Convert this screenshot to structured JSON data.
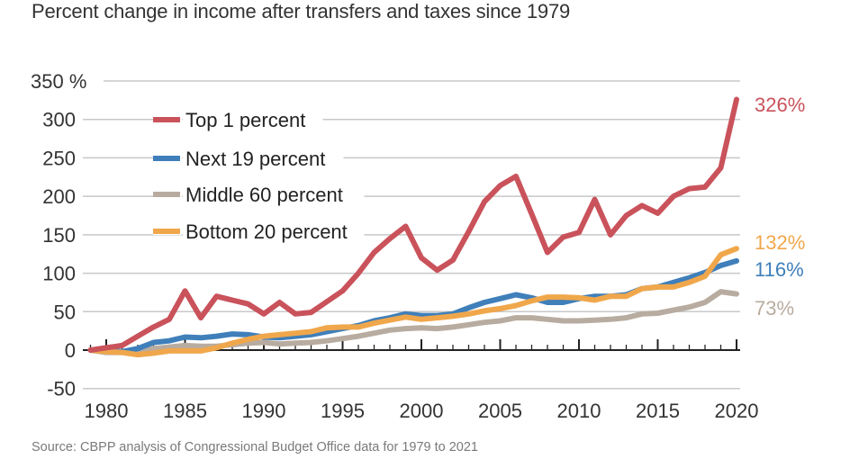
{
  "title": "Percent change in income after transfers and taxes since 1979",
  "source": "Source: CBPP analysis of Congressional Budget Office data for 1979 to 2021",
  "chart_data": {
    "type": "line",
    "title": "Percent change in income after transfers and taxes since 1979",
    "xlabel": "",
    "ylabel": "",
    "x": [
      1979,
      1980,
      1981,
      1982,
      1983,
      1984,
      1985,
      1986,
      1987,
      1988,
      1989,
      1990,
      1991,
      1992,
      1993,
      1994,
      1995,
      1996,
      1997,
      1998,
      1999,
      2000,
      2001,
      2002,
      2003,
      2004,
      2005,
      2006,
      2007,
      2008,
      2009,
      2010,
      2011,
      2012,
      2013,
      2014,
      2015,
      2016,
      2017,
      2018,
      2019,
      2020
    ],
    "xlim": [
      1978,
      2021
    ],
    "ylim": [
      -50,
      350
    ],
    "y_ticks": [
      -50,
      0,
      50,
      100,
      150,
      200,
      250,
      300,
      350
    ],
    "y_tick_labels": [
      "-50",
      "0",
      "50",
      "100",
      "150",
      "200",
      "250",
      "300",
      "350 %"
    ],
    "x_ticks": [
      1980,
      1985,
      1990,
      1995,
      2000,
      2005,
      2010,
      2015,
      2020
    ],
    "x_tick_labels": [
      "1980",
      "1985",
      "1990",
      "1995",
      "2000",
      "2005",
      "2010",
      "2015",
      "2020"
    ],
    "grid": true,
    "legend_position": "top-left",
    "series": [
      {
        "name": "Top 1 percent",
        "color": "#c9525b",
        "end_label": "326%",
        "values": [
          0,
          3,
          6,
          18,
          30,
          40,
          77,
          42,
          70,
          65,
          60,
          47,
          62,
          47,
          49,
          63,
          77,
          100,
          127,
          145,
          161,
          120,
          104,
          117,
          154,
          193,
          214,
          226,
          177,
          127,
          147,
          153,
          196,
          150,
          175,
          188,
          178,
          200,
          210,
          212,
          237,
          326
        ]
      },
      {
        "name": "Next 19 percent",
        "color": "#3f7fba",
        "end_label": "116%",
        "values": [
          0,
          -1,
          -2,
          2,
          10,
          12,
          17,
          16,
          18,
          21,
          20,
          17,
          16,
          18,
          20,
          24,
          28,
          32,
          38,
          42,
          47,
          45,
          45,
          47,
          55,
          62,
          67,
          72,
          68,
          62,
          62,
          67,
          70,
          70,
          72,
          80,
          82,
          88,
          94,
          101,
          110,
          116
        ]
      },
      {
        "name": "Middle 60 percent",
        "color": "#b8aca0",
        "end_label": "73%",
        "values": [
          0,
          -3,
          -3,
          -2,
          2,
          4,
          6,
          5,
          5,
          7,
          9,
          10,
          8,
          9,
          10,
          12,
          15,
          18,
          22,
          26,
          28,
          29,
          28,
          30,
          33,
          36,
          38,
          42,
          42,
          40,
          38,
          38,
          39,
          40,
          42,
          47,
          48,
          52,
          56,
          62,
          76,
          73
        ]
      },
      {
        "name": "Bottom 20 percent",
        "color": "#f0a74b",
        "end_label": "132%",
        "values": [
          0,
          -2,
          -3,
          -6,
          -4,
          -1,
          -1,
          -1,
          3,
          9,
          14,
          18,
          20,
          22,
          24,
          29,
          30,
          30,
          35,
          39,
          43,
          40,
          42,
          44,
          47,
          51,
          54,
          58,
          64,
          69,
          69,
          68,
          65,
          70,
          70,
          80,
          82,
          82,
          88,
          96,
          124,
          132
        ]
      }
    ]
  }
}
